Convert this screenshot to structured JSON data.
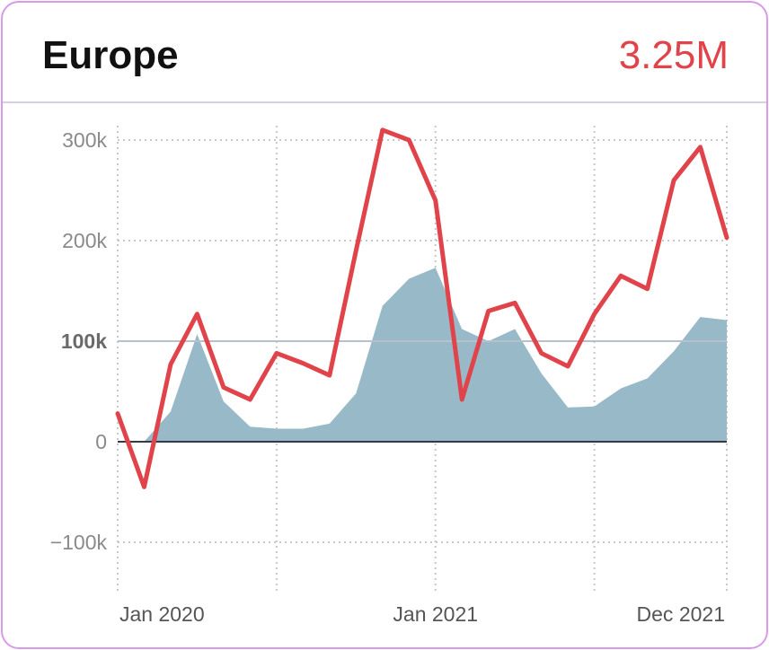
{
  "widget": {
    "region": "Europe",
    "total": "3.25M"
  },
  "colors": {
    "line": "#e0434a",
    "area": "#97b9c8",
    "grid": "#c8c8c8",
    "baseline": "#333b4a"
  },
  "chart_data": {
    "type": "line+area",
    "title": "Europe",
    "ylim": [
      -150000,
      320000
    ],
    "y_ticks": [
      {
        "value": -100000,
        "label": "−100k"
      },
      {
        "value": 0,
        "label": "0"
      },
      {
        "value": 100000,
        "label": "100k"
      },
      {
        "value": 200000,
        "label": "200k"
      },
      {
        "value": 300000,
        "label": "300k"
      }
    ],
    "x_ticks": [
      {
        "index": 0,
        "label": "Jan 2020"
      },
      {
        "index": 12,
        "label": "Jan 2021"
      },
      {
        "index": 23,
        "label": "Dec 2021"
      }
    ],
    "x_grid_indices": [
      0,
      6,
      12,
      18,
      23
    ],
    "categories": [
      "Jan 2020",
      "Feb 2020",
      "Mar 2020",
      "Apr 2020",
      "May 2020",
      "Jun 2020",
      "Jul 2020",
      "Aug 2020",
      "Sep 2020",
      "Oct 2020",
      "Nov 2020",
      "Dec 2020",
      "Jan 2021",
      "Feb 2021",
      "Mar 2021",
      "Apr 2021",
      "May 2021",
      "Jun 2021",
      "Jul 2021",
      "Aug 2021",
      "Sep 2021",
      "Oct 2021",
      "Nov 2021",
      "Dec 2021"
    ],
    "series": [
      {
        "name": "line",
        "style": "line",
        "values": [
          28000,
          -45000,
          77000,
          127000,
          54000,
          42000,
          88000,
          78000,
          66000,
          190000,
          310000,
          300000,
          240000,
          42000,
          130000,
          138000,
          88000,
          75000,
          127000,
          165000,
          152000,
          260000,
          293000,
          203000
        ]
      },
      {
        "name": "area",
        "style": "area",
        "values": [
          0,
          0,
          30000,
          107000,
          40000,
          15000,
          13000,
          13000,
          18000,
          48000,
          135000,
          162000,
          173000,
          112000,
          100000,
          112000,
          68000,
          34000,
          35000,
          53000,
          63000,
          90000,
          124000,
          121000
        ]
      }
    ]
  }
}
